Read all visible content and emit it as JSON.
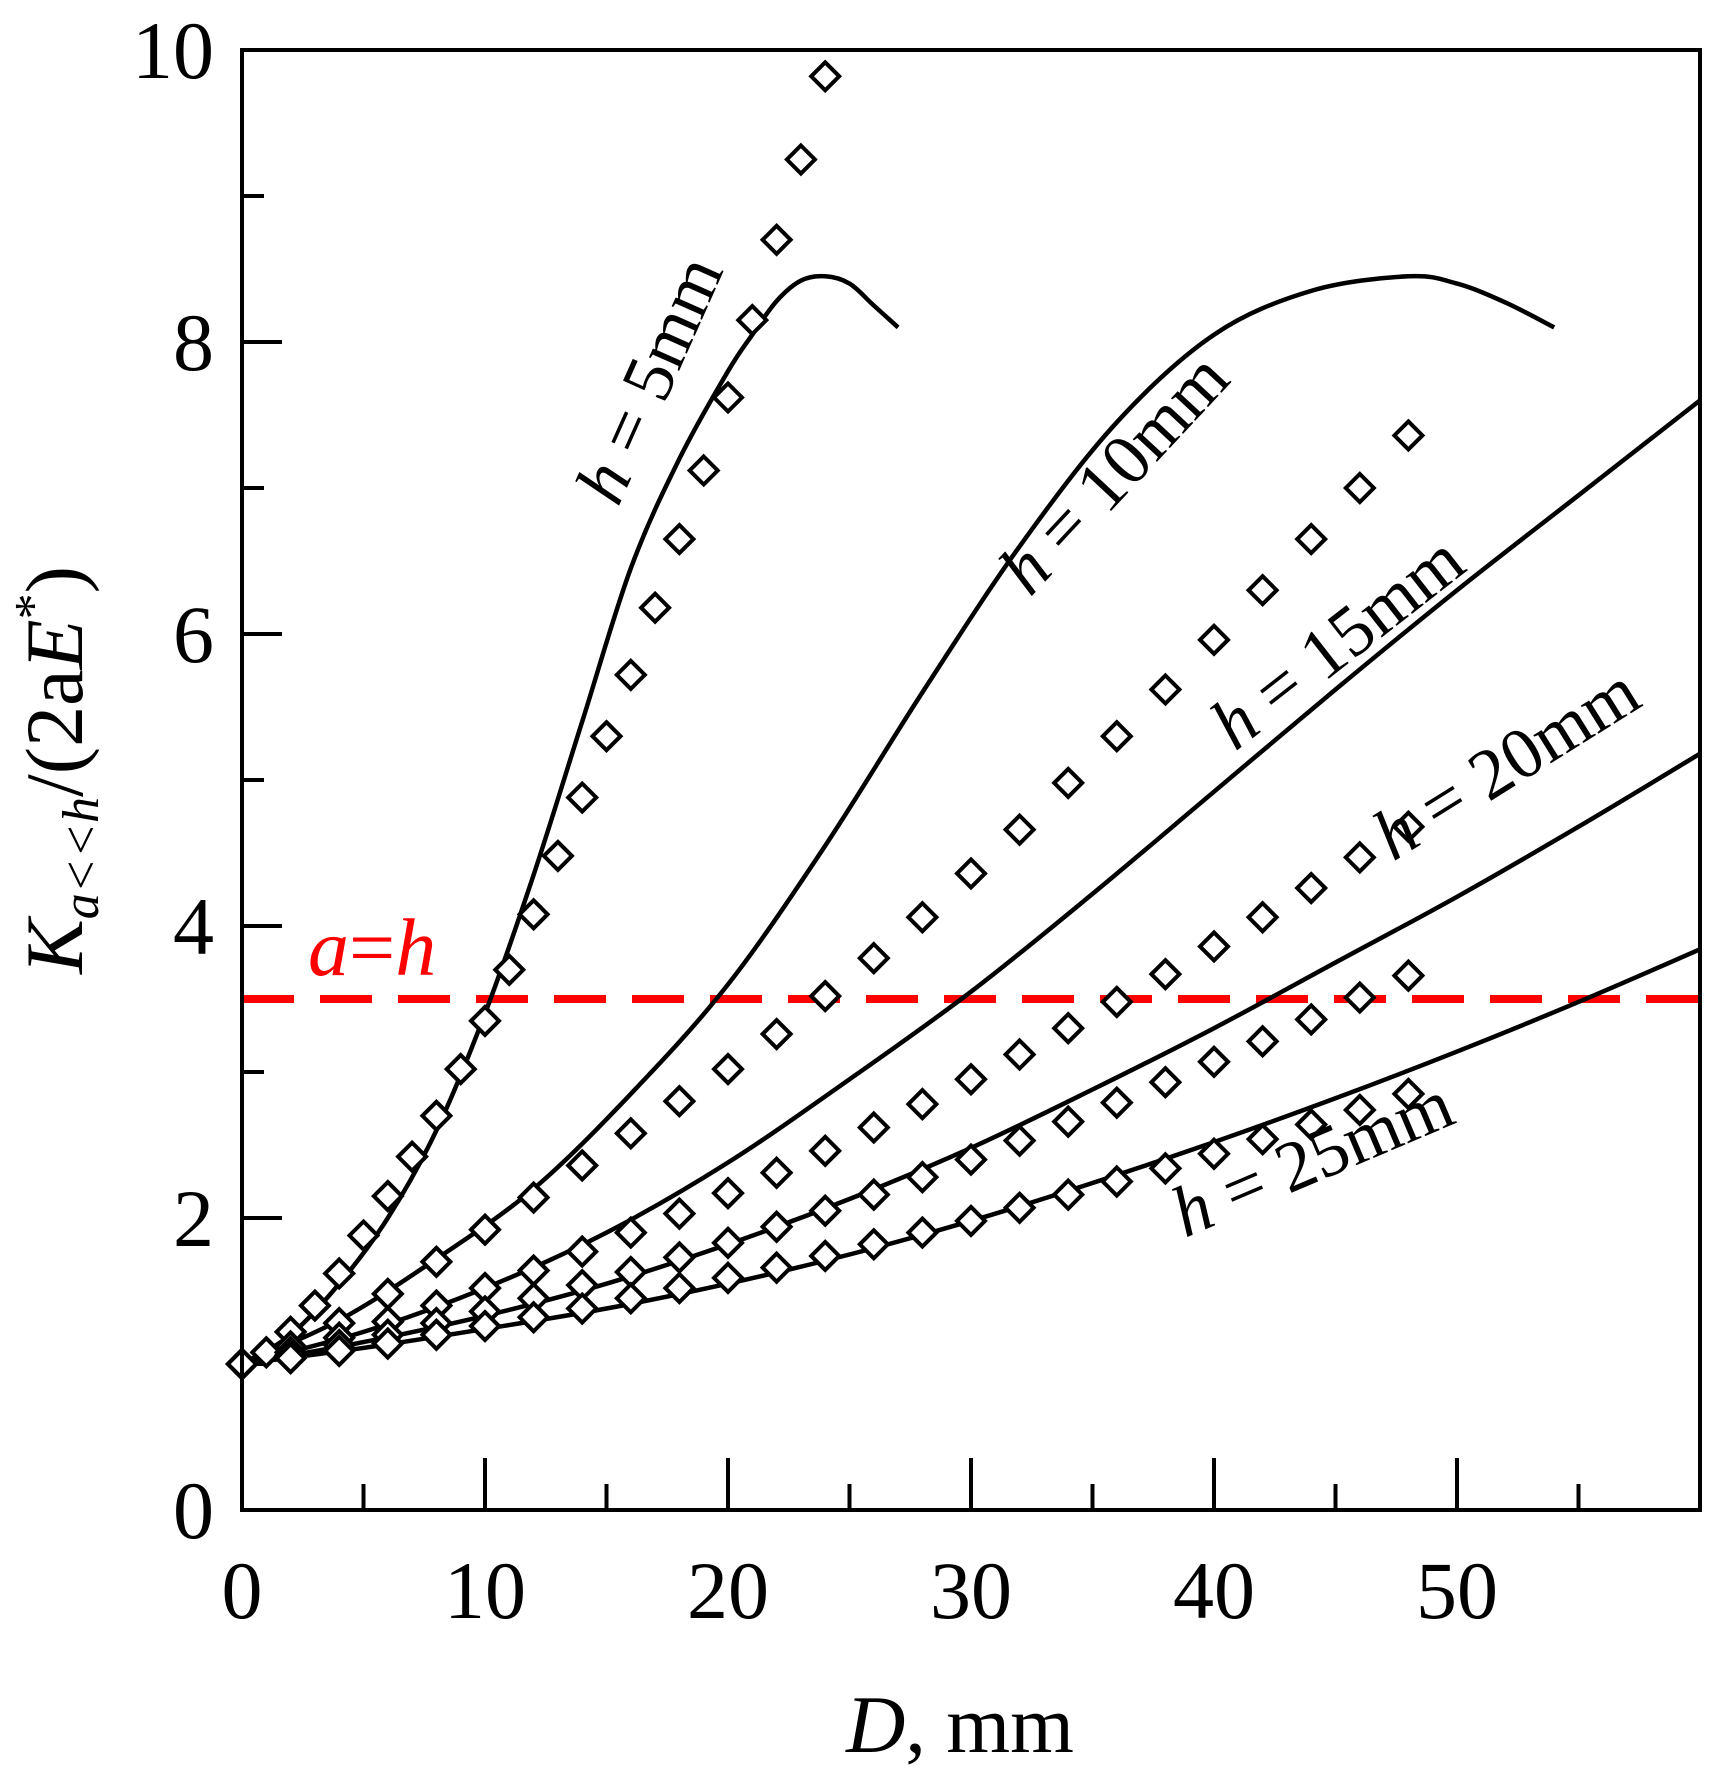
{
  "chart_data": {
    "type": "line",
    "xlabel_italic": "D",
    "xlabel_rest": ", mm",
    "ylabel_main": "K",
    "ylabel_sub": "a<<h",
    "ylabel_rest_open": "/(2a",
    "ylabel_E": "E",
    "ylabel_sup": "*",
    "ylabel_close": ")",
    "xlim": [
      0,
      60
    ],
    "ylim": [
      0,
      10
    ],
    "x_ticks": [
      0,
      10,
      20,
      30,
      40,
      50
    ],
    "x_tick_labels": [
      "0",
      "10",
      "20",
      "30",
      "40",
      "50"
    ],
    "x_minor_ticks": [
      5,
      15,
      25,
      35,
      45,
      55
    ],
    "y_ticks": [
      0,
      2,
      4,
      6,
      8,
      10
    ],
    "y_tick_labels": [
      "0",
      "2",
      "4",
      "6",
      "8",
      "10"
    ],
    "y_minor_ticks": [
      1,
      3,
      5,
      7,
      9
    ],
    "reference_line": {
      "y": 3.5,
      "label_a": "a",
      "label_eq": "=",
      "label_h": "h",
      "color": "#ff0000"
    },
    "series": [
      {
        "name": "h = 5mm",
        "label_h": "h",
        "label_rest": " = 5mm",
        "model_x": [
          0,
          2,
          4,
          6,
          8,
          10,
          12,
          14,
          16,
          18,
          20,
          21,
          22,
          23,
          24,
          25,
          26,
          27
        ],
        "model_y": [
          1.0,
          1.2,
          1.55,
          2.0,
          2.6,
          3.4,
          4.35,
          5.4,
          6.45,
          7.2,
          7.8,
          8.05,
          8.28,
          8.42,
          8.45,
          8.4,
          8.25,
          8.1
        ],
        "points_x": [
          0,
          1,
          2,
          3,
          4,
          5,
          6,
          7,
          8,
          9,
          10,
          11,
          12,
          13,
          14,
          15,
          16,
          17,
          18,
          19,
          20,
          21,
          22,
          23,
          24
        ],
        "points_y": [
          1.0,
          1.08,
          1.22,
          1.4,
          1.62,
          1.88,
          2.15,
          2.42,
          2.7,
          3.02,
          3.35,
          3.7,
          4.08,
          4.48,
          4.88,
          5.3,
          5.72,
          6.18,
          6.65,
          7.12,
          7.62,
          8.15,
          8.7,
          9.25,
          9.82
        ]
      },
      {
        "name": "h = 10mm",
        "label_h": "h",
        "label_rest": " = 10mm",
        "model_x": [
          0,
          4,
          8,
          12,
          16,
          20,
          24,
          28,
          32,
          36,
          40,
          44,
          48,
          50,
          52,
          54
        ],
        "model_y": [
          1.0,
          1.3,
          1.72,
          2.2,
          2.85,
          3.6,
          4.55,
          5.6,
          6.6,
          7.45,
          8.05,
          8.35,
          8.45,
          8.4,
          8.27,
          8.1
        ],
        "points_x": [
          0,
          2,
          4,
          6,
          8,
          10,
          12,
          14,
          16,
          18,
          20,
          22,
          24,
          26,
          28,
          30,
          32,
          34,
          36,
          38,
          40,
          42,
          44,
          46,
          48
        ],
        "points_y": [
          1.0,
          1.12,
          1.28,
          1.48,
          1.7,
          1.92,
          2.14,
          2.36,
          2.58,
          2.8,
          3.02,
          3.26,
          3.52,
          3.78,
          4.06,
          4.36,
          4.66,
          4.98,
          5.3,
          5.62,
          5.96,
          6.3,
          6.65,
          7.0,
          7.36
        ]
      },
      {
        "name": "h = 15mm",
        "label_h": "h",
        "label_rest": " = 15mm",
        "model_x": [
          0,
          5,
          10,
          15,
          20,
          25,
          30,
          35,
          40,
          45,
          50,
          55,
          60
        ],
        "model_y": [
          1.0,
          1.22,
          1.52,
          1.9,
          2.38,
          2.95,
          3.55,
          4.22,
          4.92,
          5.62,
          6.3,
          6.95,
          7.6
        ],
        "points_x": [
          0,
          2,
          4,
          6,
          8,
          10,
          12,
          14,
          16,
          18,
          20,
          22,
          24,
          26,
          28,
          30,
          32,
          34,
          36,
          38,
          40,
          42,
          44,
          46,
          48
        ],
        "points_y": [
          1.0,
          1.08,
          1.18,
          1.29,
          1.4,
          1.52,
          1.64,
          1.77,
          1.9,
          2.03,
          2.17,
          2.31,
          2.46,
          2.62,
          2.78,
          2.95,
          3.12,
          3.3,
          3.48,
          3.67,
          3.86,
          4.06,
          4.26,
          4.47,
          4.68
        ]
      },
      {
        "name": "h = 20mm",
        "label_h": "h",
        "label_rest": " = 20mm",
        "model_x": [
          0,
          5,
          10,
          15,
          20,
          25,
          30,
          35,
          40,
          45,
          50,
          55,
          60
        ],
        "model_y": [
          1.0,
          1.15,
          1.33,
          1.55,
          1.82,
          2.13,
          2.48,
          2.88,
          3.3,
          3.75,
          4.2,
          4.68,
          5.18
        ],
        "points_x": [
          0,
          2,
          4,
          6,
          8,
          10,
          12,
          14,
          16,
          18,
          20,
          22,
          24,
          26,
          28,
          30,
          32,
          34,
          36,
          38,
          40,
          42,
          44,
          46,
          48
        ],
        "points_y": [
          1.0,
          1.06,
          1.13,
          1.2,
          1.28,
          1.36,
          1.45,
          1.54,
          1.63,
          1.73,
          1.83,
          1.94,
          2.05,
          2.16,
          2.28,
          2.4,
          2.53,
          2.66,
          2.79,
          2.93,
          3.07,
          3.21,
          3.36,
          3.51,
          3.66
        ]
      },
      {
        "name": "h = 25mm",
        "label_h": "h",
        "label_rest": " = 25mm",
        "model_x": [
          0,
          5,
          10,
          15,
          20,
          25,
          30,
          35,
          40,
          45,
          50,
          55,
          60
        ],
        "model_y": [
          1.0,
          1.11,
          1.24,
          1.38,
          1.55,
          1.75,
          1.98,
          2.24,
          2.52,
          2.82,
          3.14,
          3.48,
          3.84
        ],
        "points_x": [
          0,
          2,
          4,
          6,
          8,
          10,
          12,
          14,
          16,
          18,
          20,
          22,
          24,
          26,
          28,
          30,
          32,
          34,
          36,
          38,
          40,
          42,
          44,
          46,
          48
        ],
        "points_y": [
          1.0,
          1.04,
          1.09,
          1.14,
          1.2,
          1.26,
          1.32,
          1.38,
          1.45,
          1.52,
          1.59,
          1.66,
          1.74,
          1.82,
          1.9,
          1.98,
          2.07,
          2.16,
          2.25,
          2.34,
          2.44,
          2.54,
          2.64,
          2.74,
          2.85
        ]
      }
    ]
  }
}
